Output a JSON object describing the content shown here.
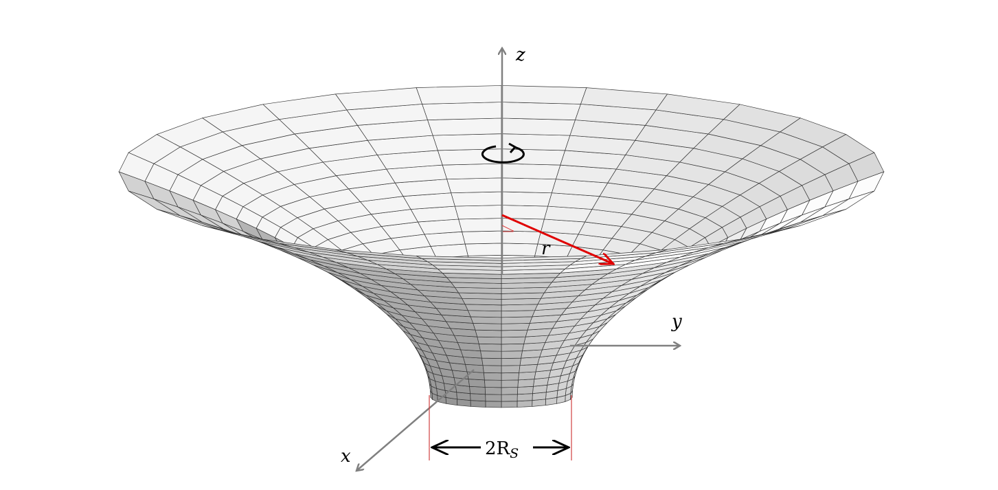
{
  "diagram": {
    "axes": {
      "z": "z",
      "y": "y",
      "x": "x"
    },
    "radius_label": "r",
    "width_label": {
      "main": "2R",
      "subscript": "S"
    },
    "colors": {
      "axis": "#808080",
      "radius_arrow": "#e00000",
      "guide_lines": "#d04040",
      "mesh": "#333333"
    },
    "icons": {
      "rotation": "rotation-arrow-icon"
    }
  }
}
